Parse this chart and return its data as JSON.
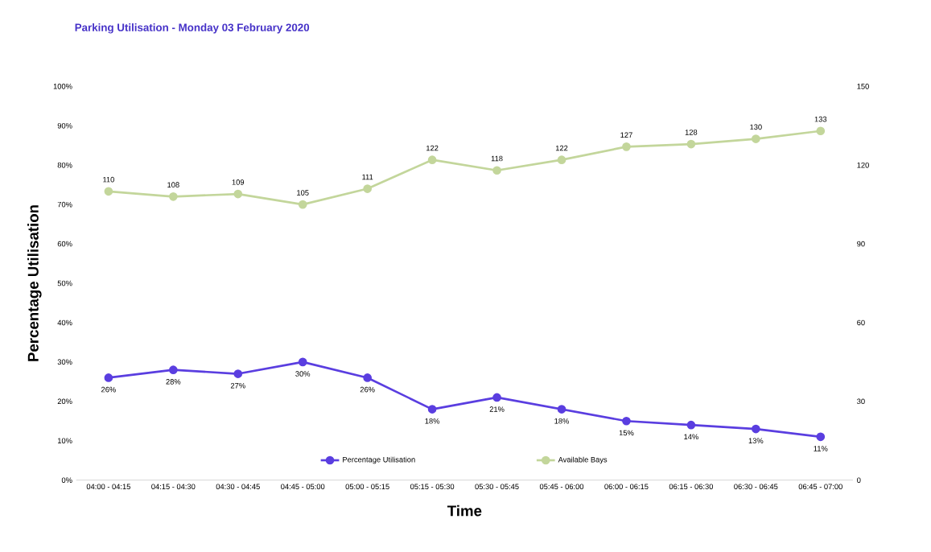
{
  "chart_data": {
    "type": "line",
    "title": "Parking Utilisation - Monday 03 February 2020",
    "xlabel": "Time",
    "ylabel": "Percentage Utilisation",
    "categories": [
      "04:00 - 04:15",
      "04:15 - 04:30",
      "04:30 - 04:45",
      "04:45 - 05:00",
      "05:00 - 05:15",
      "05:15 - 05:30",
      "05:30 - 05:45",
      "05:45 - 06:00",
      "06:00 - 06:15",
      "06:15 - 06:30",
      "06:30 - 06:45",
      "06:45 - 07:00"
    ],
    "series": [
      {
        "name": "Percentage Utilisation",
        "color": "#5a3ee0",
        "values": [
          26,
          28,
          27,
          30,
          26,
          18,
          21,
          18,
          15,
          14,
          13,
          11
        ],
        "value_labels": [
          "26%",
          "28%",
          "27%",
          "30%",
          "26%",
          "18%",
          "21%",
          "18%",
          "15%",
          "14%",
          "13%",
          "11%"
        ]
      },
      {
        "name": "Available Bays",
        "color": "#c3d69b",
        "axis": "y2",
        "values": [
          110,
          108,
          109,
          105,
          111,
          122,
          118,
          122,
          127,
          128,
          130,
          133
        ],
        "value_labels": [
          "110",
          "108",
          "109",
          "105",
          "111",
          "122",
          "118",
          "122",
          "127",
          "128",
          "130",
          "133"
        ]
      }
    ],
    "ylim": [
      0,
      100
    ],
    "yticks": [
      {
        "value": 0,
        "label": "0%"
      },
      {
        "value": 10,
        "label": "10%"
      },
      {
        "value": 20,
        "label": "20%"
      },
      {
        "value": 30,
        "label": "30%"
      },
      {
        "value": 40,
        "label": "40%"
      },
      {
        "value": 50,
        "label": "50%"
      },
      {
        "value": 60,
        "label": "60%"
      },
      {
        "value": 70,
        "label": "70%"
      },
      {
        "value": 80,
        "label": "80%"
      },
      {
        "value": 90,
        "label": "90%"
      },
      {
        "value": 100,
        "label": "100%"
      }
    ],
    "y2lim": [
      0,
      150
    ],
    "y2ticks": [
      0,
      30,
      60,
      90,
      120,
      150
    ],
    "legend": "bottom",
    "marker": "circle",
    "line_style": "solid",
    "grid": false
  }
}
